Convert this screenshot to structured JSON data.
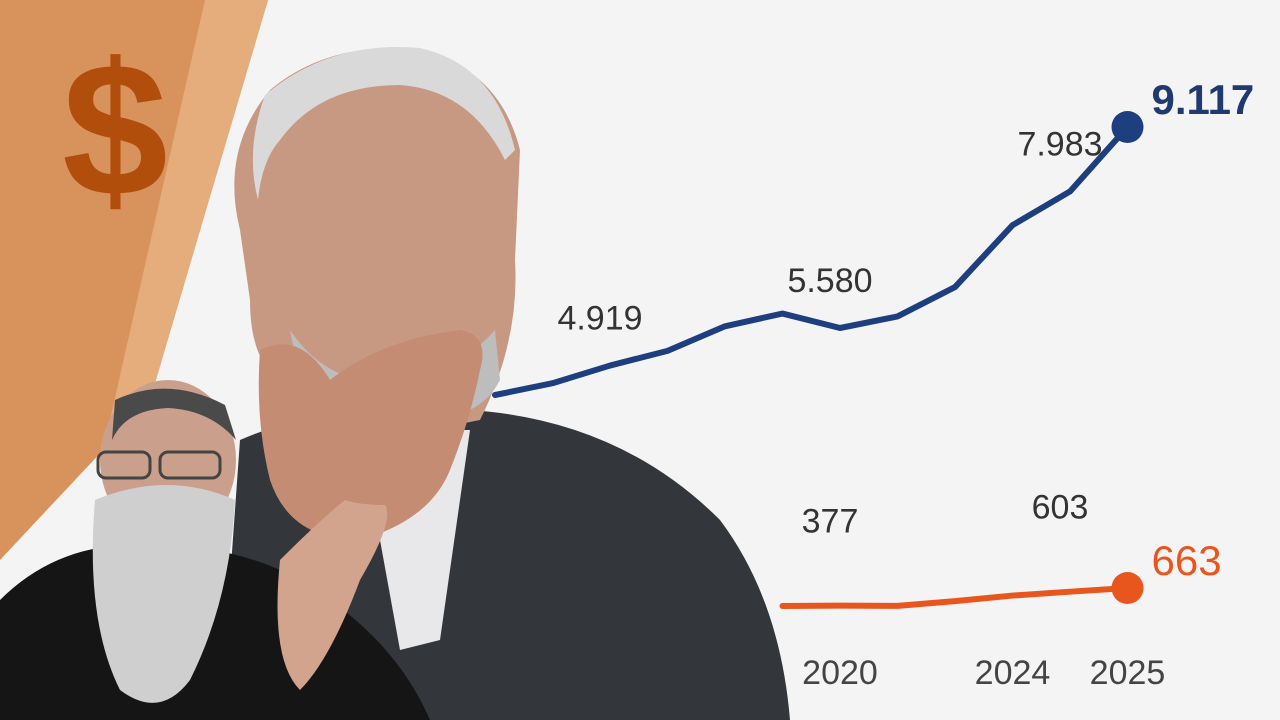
{
  "badge": "$",
  "chart_data": {
    "type": "line",
    "categories": [
      null,
      null,
      null,
      null,
      null,
      null,
      "2020",
      null,
      null,
      "2024",
      null,
      "2025"
    ],
    "series": [
      {
        "color": "#1d3f7f",
        "values": [
          4401,
          4608,
          4919,
          5178,
          5610,
          5834,
          5580,
          5783,
          6301,
          7389,
          7983,
          9117
        ],
        "value_labels": [
          null,
          null,
          "4.919",
          null,
          null,
          null,
          "5.580",
          null,
          null,
          null,
          "7.983",
          "9.117"
        ]
      },
      {
        "color": "#e8561e",
        "values": [
          null,
          null,
          null,
          null,
          null,
          370,
          377,
          372,
          450,
          540,
          603,
          663
        ],
        "value_labels": [
          null,
          null,
          null,
          null,
          null,
          null,
          "377",
          null,
          null,
          null,
          "603",
          "663"
        ]
      }
    ]
  }
}
